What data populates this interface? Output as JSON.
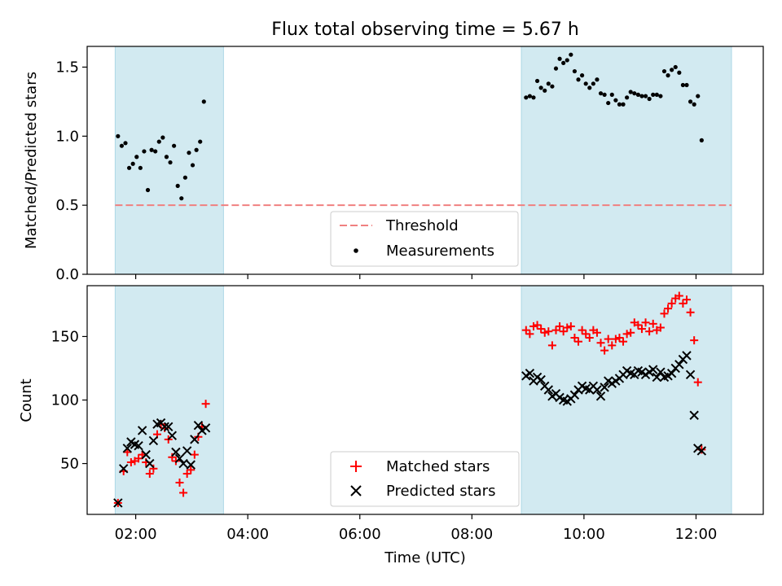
{
  "title": "Flux total observing time = 5.67 h",
  "colors": {
    "shade": "#add8e6",
    "threshold": "#f08080",
    "matched": "#ff0000",
    "predicted": "#000000"
  },
  "chart_data": [
    {
      "type": "scatter",
      "title": "Flux total observing time = 5.67 h",
      "xlabel": "",
      "ylabel": "Matched/Predicted stars",
      "xlim": [
        "01:08",
        "13:12"
      ],
      "ylim": [
        0,
        1.65
      ],
      "yticks": [
        0.0,
        0.5,
        1.0,
        1.5
      ],
      "ytick_labels": [
        "0.0",
        "0.5",
        "1.0",
        "1.5"
      ],
      "shaded_spans": [
        [
          "01:38",
          "03:34"
        ],
        [
          "08:53",
          "12:38"
        ]
      ],
      "threshold": {
        "name": "Threshold",
        "value": 0.5,
        "x_range": [
          "01:38",
          "12:38"
        ],
        "style": "dashed"
      },
      "legend": {
        "location": "lower center",
        "entries": [
          "Threshold",
          "Measurements"
        ]
      },
      "series": [
        {
          "name": "Measurements",
          "marker": "dot",
          "points": [
            [
              "01:41",
              1.0
            ],
            [
              "01:45",
              0.93
            ],
            [
              "01:49",
              0.95
            ],
            [
              "01:53",
              0.77
            ],
            [
              "01:57",
              0.8
            ],
            [
              "02:01",
              0.85
            ],
            [
              "02:05",
              0.77
            ],
            [
              "02:09",
              0.89
            ],
            [
              "02:13",
              0.61
            ],
            [
              "02:17",
              0.9
            ],
            [
              "02:21",
              0.89
            ],
            [
              "02:25",
              0.96
            ],
            [
              "02:29",
              0.99
            ],
            [
              "02:33",
              0.85
            ],
            [
              "02:37",
              0.81
            ],
            [
              "02:41",
              0.93
            ],
            [
              "02:45",
              0.64
            ],
            [
              "02:49",
              0.55
            ],
            [
              "02:53",
              0.7
            ],
            [
              "02:57",
              0.88
            ],
            [
              "03:01",
              0.79
            ],
            [
              "03:05",
              0.9
            ],
            [
              "03:09",
              0.96
            ],
            [
              "03:13",
              1.25
            ],
            [
              "08:58",
              1.28
            ],
            [
              "09:02",
              1.29
            ],
            [
              "09:06",
              1.28
            ],
            [
              "09:10",
              1.4
            ],
            [
              "09:14",
              1.35
            ],
            [
              "09:18",
              1.33
            ],
            [
              "09:22",
              1.38
            ],
            [
              "09:26",
              1.36
            ],
            [
              "09:30",
              1.49
            ],
            [
              "09:34",
              1.56
            ],
            [
              "09:38",
              1.53
            ],
            [
              "09:42",
              1.55
            ],
            [
              "09:46",
              1.59
            ],
            [
              "09:50",
              1.47
            ],
            [
              "09:54",
              1.41
            ],
            [
              "09:58",
              1.44
            ],
            [
              "10:02",
              1.38
            ],
            [
              "10:06",
              1.35
            ],
            [
              "10:10",
              1.38
            ],
            [
              "10:14",
              1.41
            ],
            [
              "10:18",
              1.31
            ],
            [
              "10:22",
              1.3
            ],
            [
              "10:26",
              1.24
            ],
            [
              "10:30",
              1.3
            ],
            [
              "10:34",
              1.26
            ],
            [
              "10:38",
              1.23
            ],
            [
              "10:42",
              1.23
            ],
            [
              "10:46",
              1.28
            ],
            [
              "10:50",
              1.32
            ],
            [
              "10:54",
              1.31
            ],
            [
              "10:58",
              1.3
            ],
            [
              "11:02",
              1.29
            ],
            [
              "11:06",
              1.29
            ],
            [
              "11:10",
              1.27
            ],
            [
              "11:14",
              1.3
            ],
            [
              "11:18",
              1.3
            ],
            [
              "11:22",
              1.29
            ],
            [
              "11:26",
              1.47
            ],
            [
              "11:30",
              1.44
            ],
            [
              "11:34",
              1.48
            ],
            [
              "11:38",
              1.5
            ],
            [
              "11:42",
              1.46
            ],
            [
              "11:46",
              1.37
            ],
            [
              "11:50",
              1.37
            ],
            [
              "11:54",
              1.25
            ],
            [
              "11:58",
              1.23
            ],
            [
              "12:02",
              1.29
            ],
            [
              "12:06",
              0.97
            ]
          ]
        }
      ]
    },
    {
      "type": "scatter",
      "title": "",
      "xlabel": "Time (UTC)",
      "ylabel": "Count",
      "xlim": [
        "01:08",
        "13:12"
      ],
      "ylim": [
        10,
        190
      ],
      "yticks": [
        50,
        100,
        150
      ],
      "ytick_labels": [
        "50",
        "100",
        "150"
      ],
      "xticks": [
        "02:00",
        "04:00",
        "06:00",
        "08:00",
        "10:00",
        "12:00"
      ],
      "xtick_labels": [
        "02:00",
        "04:00",
        "06:00",
        "08:00",
        "10:00",
        "12:00"
      ],
      "shaded_spans": [
        [
          "01:38",
          "03:34"
        ],
        [
          "08:53",
          "12:38"
        ]
      ],
      "legend": {
        "location": "lower center",
        "entries": [
          "Matched stars",
          "Predicted stars"
        ]
      },
      "series": [
        {
          "name": "Matched stars",
          "marker": "plus",
          "points": [
            [
              "01:41",
              19
            ],
            [
              "01:47",
              44
            ],
            [
              "01:51",
              59
            ],
            [
              "01:55",
              51
            ],
            [
              "01:59",
              52
            ],
            [
              "02:03",
              54
            ],
            [
              "02:07",
              57
            ],
            [
              "02:11",
              51
            ],
            [
              "02:15",
              42
            ],
            [
              "02:19",
              46
            ],
            [
              "02:23",
              73
            ],
            [
              "02:27",
              81
            ],
            [
              "02:31",
              78
            ],
            [
              "02:35",
              69
            ],
            [
              "02:39",
              55
            ],
            [
              "02:43",
              52
            ],
            [
              "02:47",
              35
            ],
            [
              "02:51",
              27
            ],
            [
              "02:55",
              42
            ],
            [
              "02:59",
              45
            ],
            [
              "03:03",
              57
            ],
            [
              "03:07",
              71
            ],
            [
              "03:11",
              79
            ],
            [
              "03:15",
              97
            ],
            [
              "08:58",
              155
            ],
            [
              "09:02",
              152
            ],
            [
              "09:06",
              158
            ],
            [
              "09:10",
              159
            ],
            [
              "09:14",
              156
            ],
            [
              "09:18",
              153
            ],
            [
              "09:22",
              154
            ],
            [
              "09:26",
              143
            ],
            [
              "09:30",
              155
            ],
            [
              "09:34",
              158
            ],
            [
              "09:38",
              154
            ],
            [
              "09:42",
              157
            ],
            [
              "09:46",
              158
            ],
            [
              "09:50",
              149
            ],
            [
              "09:54",
              146
            ],
            [
              "09:58",
              155
            ],
            [
              "10:02",
              152
            ],
            [
              "10:06",
              149
            ],
            [
              "10:10",
              155
            ],
            [
              "10:14",
              153
            ],
            [
              "10:18",
              145
            ],
            [
              "10:22",
              139
            ],
            [
              "10:26",
              148
            ],
            [
              "10:30",
              143
            ],
            [
              "10:34",
              148
            ],
            [
              "10:38",
              149
            ],
            [
              "10:42",
              146
            ],
            [
              "10:46",
              152
            ],
            [
              "10:50",
              153
            ],
            [
              "10:54",
              161
            ],
            [
              "10:58",
              159
            ],
            [
              "11:02",
              156
            ],
            [
              "11:06",
              161
            ],
            [
              "11:10",
              154
            ],
            [
              "11:14",
              160
            ],
            [
              "11:18",
              155
            ],
            [
              "11:22",
              157
            ],
            [
              "11:26",
              168
            ],
            [
              "11:30",
              172
            ],
            [
              "11:34",
              176
            ],
            [
              "11:38",
              180
            ],
            [
              "11:42",
              182
            ],
            [
              "11:46",
              176
            ],
            [
              "11:50",
              179
            ],
            [
              "11:54",
              169
            ],
            [
              "11:58",
              147
            ],
            [
              "12:02",
              114
            ],
            [
              "12:06",
              61
            ]
          ]
        },
        {
          "name": "Predicted stars",
          "marker": "x",
          "points": [
            [
              "01:41",
              19
            ],
            [
              "01:47",
              46
            ],
            [
              "01:51",
              62
            ],
            [
              "01:55",
              67
            ],
            [
              "01:59",
              65
            ],
            [
              "02:03",
              64
            ],
            [
              "02:07",
              76
            ],
            [
              "02:11",
              57
            ],
            [
              "02:15",
              50
            ],
            [
              "02:19",
              68
            ],
            [
              "02:23",
              81
            ],
            [
              "02:27",
              82
            ],
            [
              "02:31",
              79
            ],
            [
              "02:35",
              79
            ],
            [
              "02:39",
              72
            ],
            [
              "02:43",
              59
            ],
            [
              "02:47",
              54
            ],
            [
              "02:51",
              50
            ],
            [
              "02:55",
              60
            ],
            [
              "02:59",
              49
            ],
            [
              "03:03",
              69
            ],
            [
              "03:07",
              80
            ],
            [
              "03:11",
              76
            ],
            [
              "03:15",
              78
            ],
            [
              "08:58",
              119
            ],
            [
              "09:02",
              121
            ],
            [
              "09:06",
              115
            ],
            [
              "09:10",
              118
            ],
            [
              "09:14",
              116
            ],
            [
              "09:18",
              111
            ],
            [
              "09:22",
              108
            ],
            [
              "09:26",
              103
            ],
            [
              "09:30",
              105
            ],
            [
              "09:34",
              102
            ],
            [
              "09:38",
              100
            ],
            [
              "09:42",
              99
            ],
            [
              "09:46",
              101
            ],
            [
              "09:50",
              104
            ],
            [
              "09:54",
              108
            ],
            [
              "09:58",
              111
            ],
            [
              "10:02",
              109
            ],
            [
              "10:06",
              108
            ],
            [
              "10:10",
              111
            ],
            [
              "10:14",
              108
            ],
            [
              "10:18",
              103
            ],
            [
              "10:22",
              110
            ],
            [
              "10:26",
              115
            ],
            [
              "10:30",
              113
            ],
            [
              "10:34",
              115
            ],
            [
              "10:38",
              117
            ],
            [
              "10:42",
              120
            ],
            [
              "10:46",
              123
            ],
            [
              "10:50",
              121
            ],
            [
              "10:54",
              120
            ],
            [
              "10:58",
              123
            ],
            [
              "11:02",
              122
            ],
            [
              "11:06",
              120
            ],
            [
              "11:10",
              122
            ],
            [
              "11:14",
              124
            ],
            [
              "11:18",
              118
            ],
            [
              "11:22",
              122
            ],
            [
              "11:26",
              118
            ],
            [
              "11:30",
              119
            ],
            [
              "11:34",
              121
            ],
            [
              "11:38",
              125
            ],
            [
              "11:42",
              128
            ],
            [
              "11:46",
              132
            ],
            [
              "11:50",
              135
            ],
            [
              "11:54",
              120
            ],
            [
              "11:58",
              88
            ],
            [
              "12:02",
              62
            ],
            [
              "12:06",
              60
            ]
          ]
        }
      ]
    }
  ]
}
